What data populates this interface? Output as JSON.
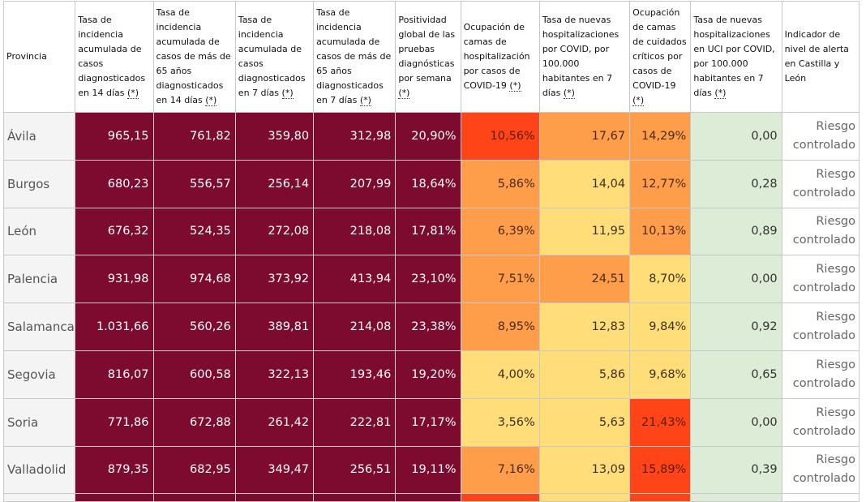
{
  "headers": [
    {
      "text": "Provincia",
      "note": ""
    },
    {
      "text": "Tasa de incidencia acumulada de casos diagnosticados en 14 días",
      "note": "(*)"
    },
    {
      "text": "Tasa de incidencia acumulada de casos de más de 65 años diagnosticados en 14 días",
      "note": "(*)"
    },
    {
      "text": "Tasa de incidencia acumulada de casos diagnosticados en 7 días",
      "note": "(*)"
    },
    {
      "text": "Tasa de incidencia acumulada de casos de más de 65 años diagnosticados en 7 días",
      "note": "(*)"
    },
    {
      "text": "Positividad global de las pruebas diagnósticas por semana",
      "note": "(*)"
    },
    {
      "text": "Ocupación de camas de hospitalización por casos de COVID-19",
      "note": "(*)"
    },
    {
      "text": "Tasa de nuevas hospitalizaciones por COVID, por 100.000 habitantes en 7 días",
      "note": "(*)"
    },
    {
      "text": "Ocupación de camas de cuidados críticos por casos de COVID-19",
      "note": "(*)"
    },
    {
      "text": "Tasa de nuevas hospitalizaciones en UCI por COVID, por 100.000 habitantes en 7 días",
      "note": "(*)"
    },
    {
      "text": "Indicador de nivel de alerta en Castilla y León",
      "note": ""
    }
  ],
  "rows": [
    {
      "provincia": "Ávila",
      "cells": [
        "965,15",
        "761,82",
        "359,80",
        "312,98",
        "20,90%",
        "10,56%",
        "17,67",
        "14,29%",
        "0,00"
      ],
      "alert": "Riesgo controlado",
      "colors": {
        "ocup": "c-red",
        "hosp": "c-orange",
        "crit": "c-orange"
      }
    },
    {
      "provincia": "Burgos",
      "cells": [
        "680,23",
        "556,57",
        "256,14",
        "207,99",
        "18,64%",
        "5,86%",
        "14,04",
        "12,77%",
        "0,28"
      ],
      "alert": "Riesgo controlado",
      "colors": {
        "ocup": "c-orange",
        "hosp": "c-yellow",
        "crit": "c-orange"
      }
    },
    {
      "provincia": "León",
      "cells": [
        "676,32",
        "524,35",
        "272,08",
        "218,08",
        "17,81%",
        "6,39%",
        "11,95",
        "10,13%",
        "0,89"
      ],
      "alert": "Riesgo controlado",
      "colors": {
        "ocup": "c-orange",
        "hosp": "c-yellow",
        "crit": "c-orange"
      }
    },
    {
      "provincia": "Palencia",
      "cells": [
        "931,98",
        "974,68",
        "373,92",
        "413,94",
        "23,10%",
        "7,51%",
        "24,51",
        "8,70%",
        "0,00"
      ],
      "alert": "Riesgo controlado",
      "colors": {
        "ocup": "c-orange",
        "hosp": "c-orange",
        "crit": "c-yellow"
      }
    },
    {
      "provincia": "Salamanca",
      "cells": [
        "1.031,66",
        "560,26",
        "389,81",
        "214,08",
        "23,38%",
        "8,95%",
        "12,83",
        "9,84%",
        "0,92"
      ],
      "alert": "Riesgo controlado",
      "colors": {
        "ocup": "c-orange",
        "hosp": "c-yellow",
        "crit": "c-yellow"
      }
    },
    {
      "provincia": "Segovia",
      "cells": [
        "816,07",
        "600,58",
        "322,13",
        "193,46",
        "19,20%",
        "4,00%",
        "5,86",
        "9,68%",
        "0,65"
      ],
      "alert": "Riesgo controlado",
      "colors": {
        "ocup": "c-yellow",
        "hosp": "c-yellow",
        "crit": "c-yellow"
      }
    },
    {
      "provincia": "Soria",
      "cells": [
        "771,86",
        "672,88",
        "261,42",
        "222,81",
        "17,17%",
        "3,56%",
        "5,63",
        "21,43%",
        "0,00"
      ],
      "alert": "Riesgo controlado",
      "colors": {
        "ocup": "c-yellow",
        "hosp": "c-yellow",
        "crit": "c-red"
      }
    },
    {
      "provincia": "Valladolid",
      "cells": [
        "879,35",
        "682,95",
        "349,47",
        "256,51",
        "19,11%",
        "7,16%",
        "13,09",
        "15,89%",
        "0,39"
      ],
      "alert": "Riesgo controlado",
      "colors": {
        "ocup": "c-orange",
        "hosp": "c-yellow",
        "crit": "c-red"
      }
    }
  ],
  "colors": {
    "dark": "#7d0b30",
    "red": "#ff4517",
    "orange": "#ff9e4a",
    "yellow": "#ffde7a",
    "green": "#dcecd6"
  }
}
